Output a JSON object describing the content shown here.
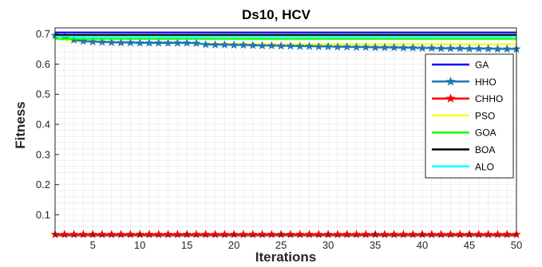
{
  "chart_data": {
    "type": "line",
    "title": "Ds10, HCV",
    "xlabel": "Iterations",
    "ylabel": "Fitness",
    "xlim": [
      1,
      50
    ],
    "ylim": [
      0.03,
      0.72
    ],
    "xticks": [
      5,
      10,
      15,
      20,
      25,
      30,
      35,
      40,
      45,
      50
    ],
    "yticks": [
      0.1,
      0.2,
      0.3,
      0.4,
      0.5,
      0.6,
      0.7
    ],
    "grid": "minor",
    "legend_position": "right",
    "series": [
      {
        "name": "GA",
        "color": "#0000ff",
        "marker": "none",
        "x": [
          1,
          50
        ],
        "y": [
          0.705,
          0.705
        ]
      },
      {
        "name": "HHO",
        "color": "#1f77b4",
        "marker": "star",
        "x": [
          1,
          2,
          3,
          4,
          5,
          6,
          7,
          8,
          9,
          10,
          11,
          12,
          13,
          14,
          15,
          16,
          17,
          18,
          19,
          20,
          21,
          22,
          23,
          24,
          25,
          26,
          27,
          28,
          29,
          30,
          31,
          32,
          33,
          34,
          35,
          36,
          37,
          38,
          39,
          40,
          41,
          42,
          43,
          44,
          45,
          46,
          47,
          48,
          49,
          50
        ],
        "y": [
          0.695,
          0.69,
          0.68,
          0.676,
          0.674,
          0.673,
          0.672,
          0.671,
          0.671,
          0.67,
          0.67,
          0.67,
          0.67,
          0.67,
          0.67,
          0.669,
          0.665,
          0.664,
          0.664,
          0.663,
          0.663,
          0.662,
          0.661,
          0.661,
          0.66,
          0.66,
          0.659,
          0.659,
          0.658,
          0.658,
          0.657,
          0.657,
          0.656,
          0.656,
          0.655,
          0.655,
          0.655,
          0.654,
          0.654,
          0.653,
          0.653,
          0.652,
          0.652,
          0.652,
          0.651,
          0.651,
          0.651,
          0.65,
          0.65,
          0.65
        ]
      },
      {
        "name": "CHHO",
        "color": "#ff0000",
        "marker": "star",
        "x": [
          1,
          2,
          3,
          4,
          5,
          6,
          7,
          8,
          9,
          10,
          11,
          12,
          13,
          14,
          15,
          16,
          17,
          18,
          19,
          20,
          21,
          22,
          23,
          24,
          25,
          26,
          27,
          28,
          29,
          30,
          31,
          32,
          33,
          34,
          35,
          36,
          37,
          38,
          39,
          40,
          41,
          42,
          43,
          44,
          45,
          46,
          47,
          48,
          49,
          50
        ],
        "y": [
          0.035,
          0.035,
          0.035,
          0.035,
          0.035,
          0.035,
          0.035,
          0.035,
          0.035,
          0.035,
          0.035,
          0.035,
          0.035,
          0.035,
          0.035,
          0.035,
          0.035,
          0.035,
          0.035,
          0.035,
          0.035,
          0.035,
          0.035,
          0.035,
          0.035,
          0.035,
          0.035,
          0.035,
          0.035,
          0.035,
          0.035,
          0.035,
          0.035,
          0.035,
          0.035,
          0.035,
          0.035,
          0.035,
          0.035,
          0.035,
          0.035,
          0.035,
          0.035,
          0.035,
          0.035,
          0.035,
          0.035,
          0.035,
          0.035,
          0.035
        ]
      },
      {
        "name": "PSO",
        "color": "#ffff00",
        "marker": "none",
        "x": [
          1,
          2,
          3,
          5,
          10,
          15,
          16,
          20,
          25,
          30,
          40,
          50
        ],
        "y": [
          0.69,
          0.68,
          0.676,
          0.673,
          0.672,
          0.67,
          0.668,
          0.667,
          0.666,
          0.666,
          0.666,
          0.666
        ]
      },
      {
        "name": "GOA",
        "color": "#00ff00",
        "marker": "none",
        "x": [
          1,
          50
        ],
        "y": [
          0.684,
          0.684
        ]
      },
      {
        "name": "BOA",
        "color": "#000000",
        "marker": "none",
        "x": [
          1,
          50
        ],
        "y": [
          0.697,
          0.697
        ]
      },
      {
        "name": "ALO",
        "color": "#00ffff",
        "marker": "none",
        "x": [
          1,
          50
        ],
        "y": [
          0.692,
          0.692
        ]
      }
    ]
  }
}
